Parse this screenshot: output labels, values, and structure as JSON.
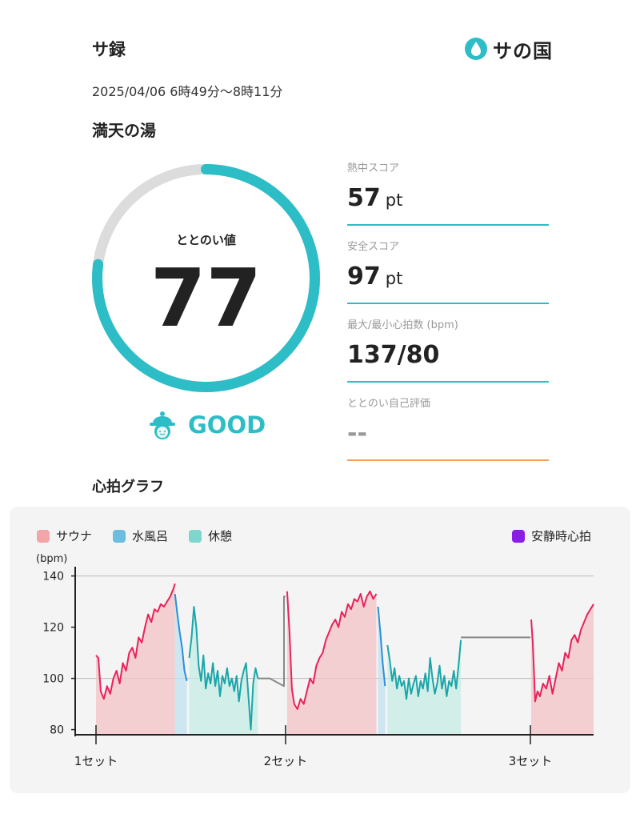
{
  "header": {
    "app_title": "サ録",
    "brand_name": "サの国",
    "datetime": "2025/04/06 6時49分〜8時11分",
    "facility": "満天の湯"
  },
  "gauge": {
    "label": "ととのい値",
    "value": "77",
    "progress": 0.77,
    "track_color": "#dcdcdc",
    "fill_color": "#2dbdc6"
  },
  "rating": {
    "icon": "sauna-hat-face-icon",
    "label": "GOOD",
    "color": "#2dbdc6"
  },
  "metrics": [
    {
      "label": "熱中スコア",
      "value": "57",
      "unit": "pt"
    },
    {
      "label": "安全スコア",
      "value": "97",
      "unit": "pt"
    },
    {
      "label": "最大/最小心拍数 (bpm)",
      "value": "137/80",
      "unit": ""
    },
    {
      "label": "ととのい自己評価",
      "value": "--",
      "unit": ""
    }
  ],
  "section": {
    "title": "心拍グラフ"
  },
  "legend": {
    "sauna": {
      "label": "サウナ",
      "color": "#f2a6aa"
    },
    "water": {
      "label": "水風呂",
      "color": "#6cbde0"
    },
    "rest": {
      "label": "休憩",
      "color": "#7fd6cc"
    },
    "resting_hr": {
      "label": "安静時心拍",
      "color": "#8a1de8"
    }
  },
  "chart_data": {
    "type": "line",
    "ylabel": "(bpm)",
    "ylim": [
      78,
      143
    ],
    "yticks": [
      80,
      100,
      120,
      140
    ],
    "xlim": [
      0,
      630
    ],
    "x_unit": "",
    "set_markers": [
      {
        "x": 0,
        "label": "1セット"
      },
      {
        "x": 240,
        "label": "2セット"
      },
      {
        "x": 550,
        "label": "3セット"
      }
    ],
    "series": [
      {
        "phase": "sauna",
        "color": "#e8225c",
        "x": [
          0,
          3,
          6,
          10,
          14,
          18,
          22,
          26,
          30,
          34,
          38,
          42,
          46,
          50,
          54,
          58,
          62,
          66,
          70,
          74,
          78,
          82,
          86,
          90,
          94,
          98,
          100
        ],
        "y": [
          109,
          108,
          95,
          92,
          97,
          94,
          100,
          103,
          98,
          106,
          103,
          110,
          112,
          108,
          116,
          114,
          120,
          125,
          122,
          127,
          126,
          129,
          128,
          130,
          132,
          135,
          137
        ]
      },
      {
        "phase": "water",
        "color": "#2a8fd8",
        "x": [
          100,
          103,
          106,
          109,
          112,
          115
        ],
        "y": [
          133,
          125,
          118,
          112,
          103,
          99
        ]
      },
      {
        "phase": "rest",
        "color": "#1aa6a8",
        "x": [
          118,
          121,
          124,
          127,
          130,
          133,
          136,
          139,
          142,
          145,
          148,
          151,
          154,
          157,
          160,
          163,
          166,
          169,
          172,
          175,
          178,
          181,
          184,
          187,
          190,
          193,
          196,
          199,
          202,
          205
        ],
        "y": [
          108,
          116,
          128,
          120,
          105,
          99,
          109,
          96,
          102,
          98,
          106,
          97,
          103,
          93,
          101,
          98,
          104,
          97,
          100,
          95,
          101,
          91,
          99,
          103,
          106,
          93,
          80,
          98,
          104,
          100
        ]
      },
      {
        "phase": "transition",
        "color": "#888888",
        "x": [
          205,
          220,
          238,
          238,
          240
        ],
        "y": [
          100,
          100,
          97,
          132,
          132
        ]
      },
      {
        "phase": "sauna",
        "color": "#e8225c",
        "x": [
          242,
          245,
          248,
          251,
          255,
          259,
          263,
          267,
          271,
          275,
          279,
          283,
          287,
          291,
          295,
          299,
          303,
          307,
          311,
          315,
          319,
          323,
          327,
          331,
          335,
          339,
          343,
          347,
          351,
          355
        ],
        "y": [
          134,
          118,
          96,
          90,
          88,
          92,
          90,
          95,
          100,
          98,
          105,
          108,
          110,
          115,
          118,
          121,
          123,
          120,
          126,
          124,
          129,
          127,
          131,
          130,
          133,
          128,
          132,
          134,
          131,
          133
        ]
      },
      {
        "phase": "water",
        "color": "#2a8fd8",
        "x": [
          357,
          360,
          363,
          366
        ],
        "y": [
          128,
          118,
          106,
          97
        ]
      },
      {
        "phase": "rest",
        "color": "#1aa6a8",
        "x": [
          369,
          372,
          375,
          378,
          381,
          384,
          387,
          390,
          393,
          396,
          399,
          402,
          405,
          408,
          411,
          414,
          417,
          420,
          423,
          426,
          429,
          432,
          435,
          438,
          441,
          444,
          447,
          450,
          453,
          456,
          459,
          462
        ],
        "y": [
          113,
          107,
          99,
          104,
          96,
          101,
          97,
          99,
          92,
          100,
          94,
          98,
          101,
          93,
          99,
          96,
          102,
          95,
          108,
          100,
          94,
          98,
          105,
          96,
          101,
          93,
          99,
          97,
          103,
          96,
          105,
          115
        ]
      },
      {
        "phase": "transition",
        "color": "#888888",
        "x": [
          462,
          462,
          550,
          550
        ],
        "y": [
          116,
          116,
          116,
          116
        ]
      },
      {
        "phase": "sauna",
        "color": "#e8225c",
        "x": [
          551,
          553,
          556,
          559,
          562,
          566,
          570,
          574,
          578,
          582,
          586,
          590,
          594,
          598,
          602,
          606,
          610,
          614,
          618,
          622,
          626,
          630
        ],
        "y": [
          123,
          114,
          91,
          95,
          93,
          98,
          96,
          101,
          94,
          100,
          106,
          103,
          110,
          108,
          115,
          117,
          114,
          119,
          122,
          125,
          127,
          129
        ]
      }
    ],
    "phase_fill_colors": {
      "sauna": "#f3c3c7",
      "water": "#bfe1f2",
      "rest": "#c7ece6"
    },
    "gridlines": [
      100,
      140
    ],
    "grid": "horizontal"
  }
}
